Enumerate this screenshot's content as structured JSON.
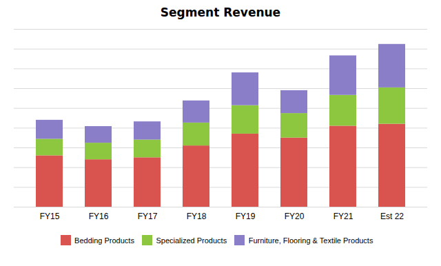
{
  "chart_data": {
    "type": "bar",
    "title": "Segment Revenue",
    "categories": [
      "FY15",
      "FY16",
      "FY17",
      "FY18",
      "FY19",
      "FY20",
      "FY21",
      "Est 22"
    ],
    "series": [
      {
        "name": "Bedding Products",
        "color": "#D9534F",
        "values": [
          1.3,
          1.2,
          1.25,
          1.55,
          1.85,
          1.75,
          2.05,
          2.1
        ]
      },
      {
        "name": "Specialized Products",
        "color": "#8DC63F",
        "values": [
          0.42,
          0.42,
          0.45,
          0.58,
          0.72,
          0.62,
          0.78,
          0.92
        ]
      },
      {
        "name": "Furniture, Flooring & Textile Products",
        "color": "#8B7EC8",
        "values": [
          0.48,
          0.42,
          0.46,
          0.56,
          0.83,
          0.58,
          1.0,
          1.1
        ]
      }
    ],
    "stacked": true,
    "ylim": [
      0,
      4.5
    ],
    "yticks": [
      0,
      0.5,
      1,
      1.5,
      2,
      2.5,
      3,
      3.5,
      4,
      4.5
    ],
    "grid": true,
    "legend": "bottom",
    "tick_labels": "x"
  }
}
